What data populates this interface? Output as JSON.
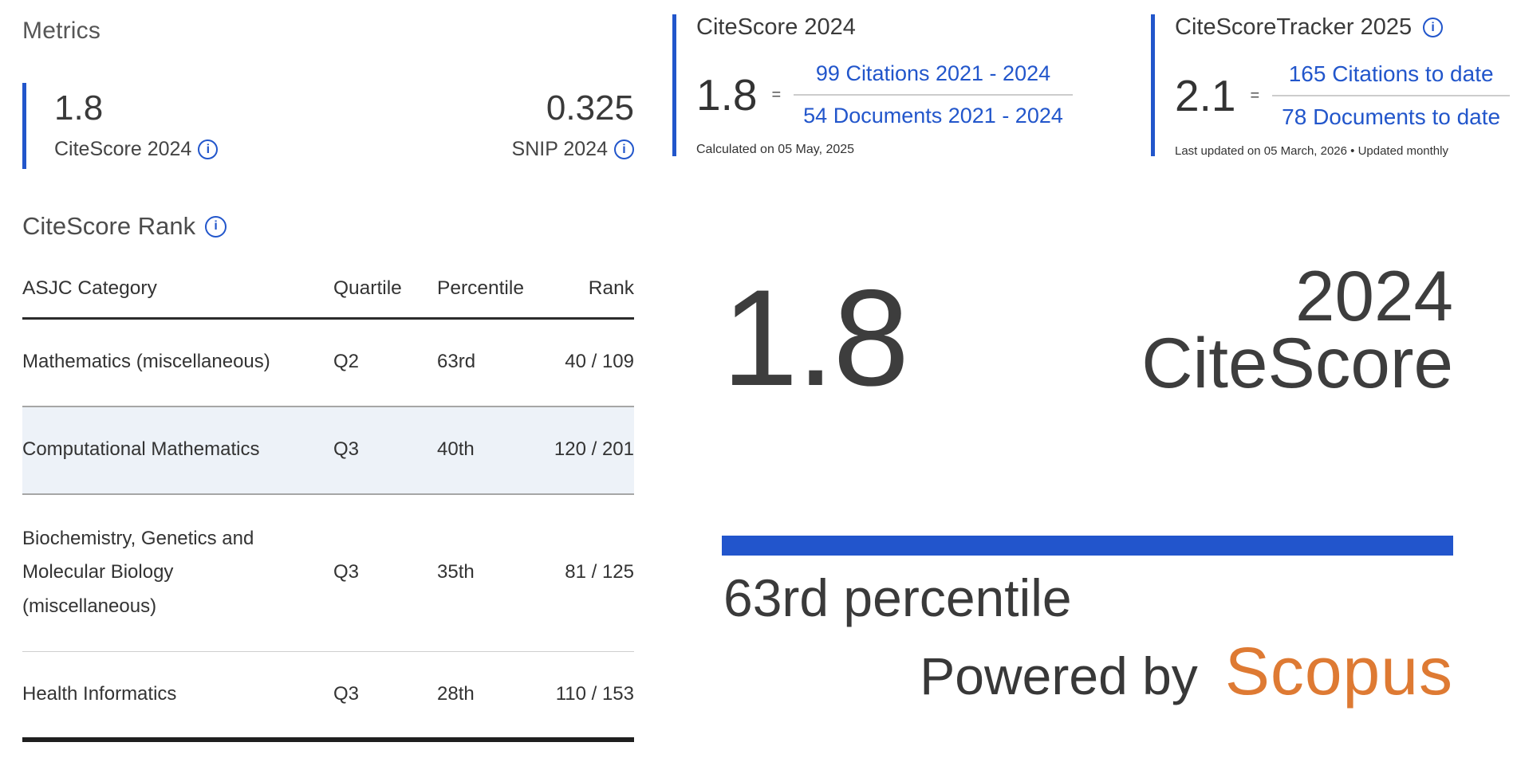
{
  "icons": {
    "info": "i"
  },
  "metrics": {
    "heading": "Metrics",
    "citescore": {
      "value": "1.8",
      "label": "CiteScore 2024"
    },
    "snip": {
      "value": "0.325",
      "label": "SNIP 2024"
    }
  },
  "rank": {
    "heading": "CiteScore Rank",
    "columns": [
      "ASJC Category",
      "Quartile",
      "Percentile",
      "Rank"
    ],
    "rows": [
      {
        "category": "Mathematics (miscellaneous)",
        "quartile": "Q2",
        "percentile": "63rd",
        "rank": "40 / 109"
      },
      {
        "category": "Computational Mathematics",
        "quartile": "Q3",
        "percentile": "40th",
        "rank": "120 / 201"
      },
      {
        "category": "Biochemistry, Genetics and Molecular Biology (miscellaneous)",
        "quartile": "Q3",
        "percentile": "35th",
        "rank": "81 / 125"
      },
      {
        "category": "Health Informatics",
        "quartile": "Q3",
        "percentile": "28th",
        "rank": "110 / 153"
      }
    ]
  },
  "citescore_panel": {
    "title": "CiteScore 2024",
    "value": "1.8",
    "equals": "=",
    "numerator": "99 Citations 2021 - 2024",
    "denominator": "54 Documents 2021 - 2024",
    "footnote": "Calculated on 05 May, 2025"
  },
  "tracker_panel": {
    "title": "CiteScoreTracker 2025",
    "value": "2.1",
    "equals": "=",
    "numerator": "165 Citations to date",
    "denominator": "78 Documents to date",
    "footnote": "Last updated on 05 March, 2026 • Updated monthly"
  },
  "badge": {
    "score": "1.8",
    "year": "2024",
    "label": "CiteScore",
    "percentile": "63rd percentile",
    "powered_by": "Powered by",
    "brand": "Scopus"
  },
  "colors": {
    "accent_blue": "#2256cb",
    "bar_blue": "#2255cc",
    "brand_orange": "#de7a33",
    "highlight_row": "#edf2f8"
  }
}
